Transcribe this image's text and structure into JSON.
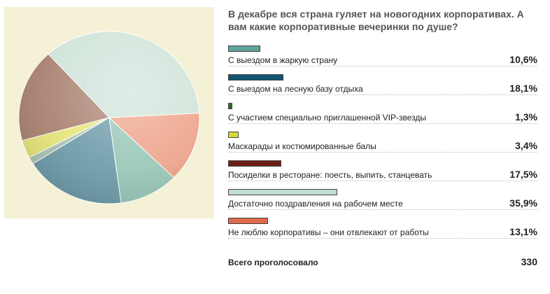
{
  "poll": {
    "title": "В декабре вся страна гуляет на новогодних корпоративах. А вам какие корпоративные вечеринки по душе?",
    "total_label": "Всего проголосовало",
    "total_value": "330"
  },
  "chart_data": {
    "type": "pie",
    "title": "",
    "slices": [
      {
        "label": "С выездом в жаркую страну",
        "value": 10.6,
        "display": "10,6%",
        "color": "#5fa39c",
        "pie_color": "#97c6b6"
      },
      {
        "label": "С выездом на лесную базу отдыха",
        "value": 18.1,
        "display": "18,1%",
        "color": "#12536e",
        "pie_color": "#6d9ba9"
      },
      {
        "label": "С участием специально приглашенной VIP-звезды",
        "value": 1.3,
        "display": "1,3%",
        "color": "#2e6a1d",
        "pie_color": "#a9c3b0"
      },
      {
        "label": "Маскарады и костюмированные балы",
        "value": 3.4,
        "display": "3,4%",
        "color": "#d7d93a",
        "pie_color": "#e6e57a"
      },
      {
        "label": "Посиделки в ресторане: поесть, выпить, станцевать",
        "value": 17.5,
        "display": "17,5%",
        "color": "#6d1e16",
        "pie_color": "#a98170"
      },
      {
        "label": "Достаточно поздравления на рабочем месте",
        "value": 35.9,
        "display": "35,9%",
        "color": "#c1dcd2",
        "pie_color": "#cfe3d9"
      },
      {
        "label": "Не люблю корпоративы – они отвлекают от работы",
        "value": 13.1,
        "display": "13,1%",
        "color": "#e06a4a",
        "pie_color": "#eda38a"
      }
    ],
    "bar_max": 35.9
  }
}
